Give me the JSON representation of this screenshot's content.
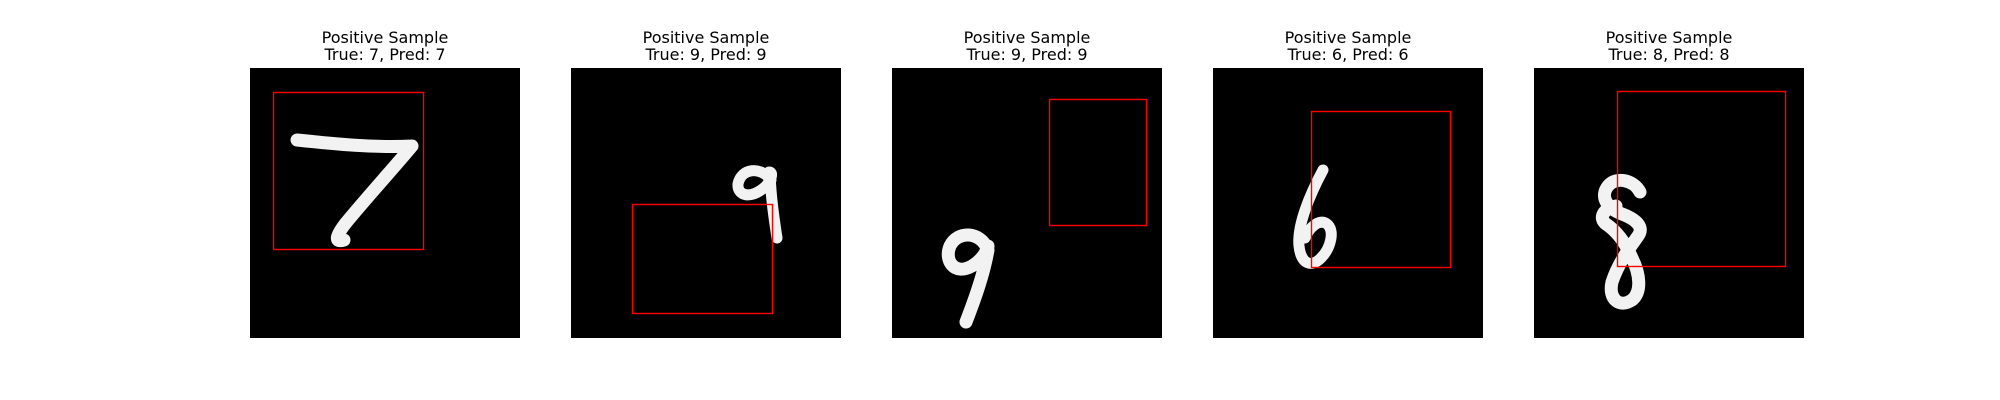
{
  "figure": {
    "panels": [
      {
        "title": "Positive Sample",
        "label": "True: 7, Pred: 7",
        "true_digit": 7,
        "pred_digit": 7,
        "box_color": "#ff0000"
      },
      {
        "title": "Positive Sample",
        "label": "True: 9, Pred: 9",
        "true_digit": 9,
        "pred_digit": 9,
        "box_color": "#ff0000"
      },
      {
        "title": "Positive Sample",
        "label": "True: 9, Pred: 9",
        "true_digit": 9,
        "pred_digit": 9,
        "box_color": "#ff0000"
      },
      {
        "title": "Positive Sample",
        "label": "True: 6, Pred: 6",
        "true_digit": 6,
        "pred_digit": 6,
        "box_color": "#ff0000"
      },
      {
        "title": "Positive Sample",
        "label": "True: 8, Pred: 8",
        "true_digit": 8,
        "pred_digit": 8,
        "box_color": "#ff0000"
      }
    ]
  }
}
